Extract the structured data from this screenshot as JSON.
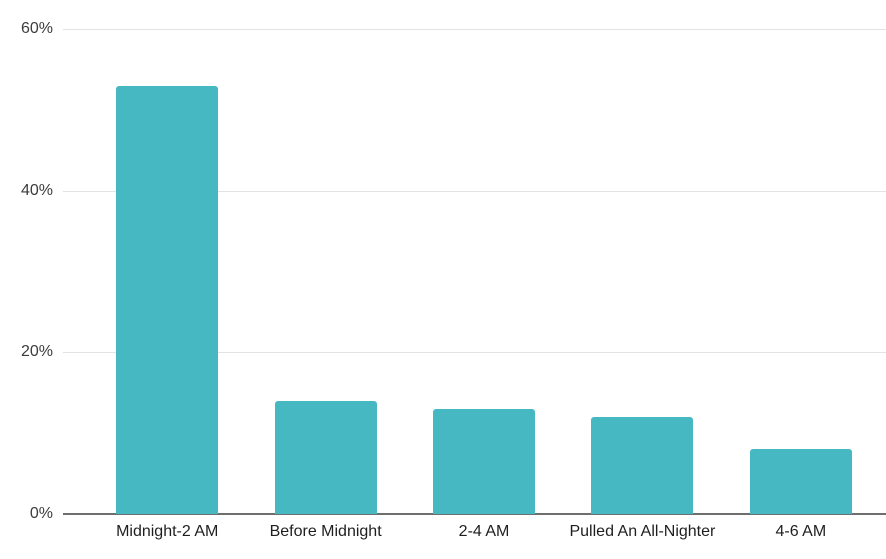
{
  "chart_data": {
    "type": "bar",
    "title": "",
    "xlabel": "",
    "ylabel": "",
    "categories": [
      "Midnight-2 AM",
      "Before Midnight",
      "2-4 AM",
      "Pulled An All-Nighter",
      "4-6 AM"
    ],
    "values": [
      53,
      14,
      13,
      12,
      8
    ],
    "unit": "%",
    "ylim": [
      0,
      60
    ],
    "yticks": [
      0,
      20,
      40,
      60
    ],
    "ytick_labels": [
      "0%",
      "20%",
      "40%",
      "60%"
    ],
    "grid": true,
    "legend": false,
    "colors": {
      "bar": "#46b8c2",
      "gridline": "#e3e3e3",
      "axis_line": "#6e6e6e",
      "tick_text": "#3c3c3c",
      "category_text": "#1f1f1f",
      "background": "#ffffff"
    }
  }
}
